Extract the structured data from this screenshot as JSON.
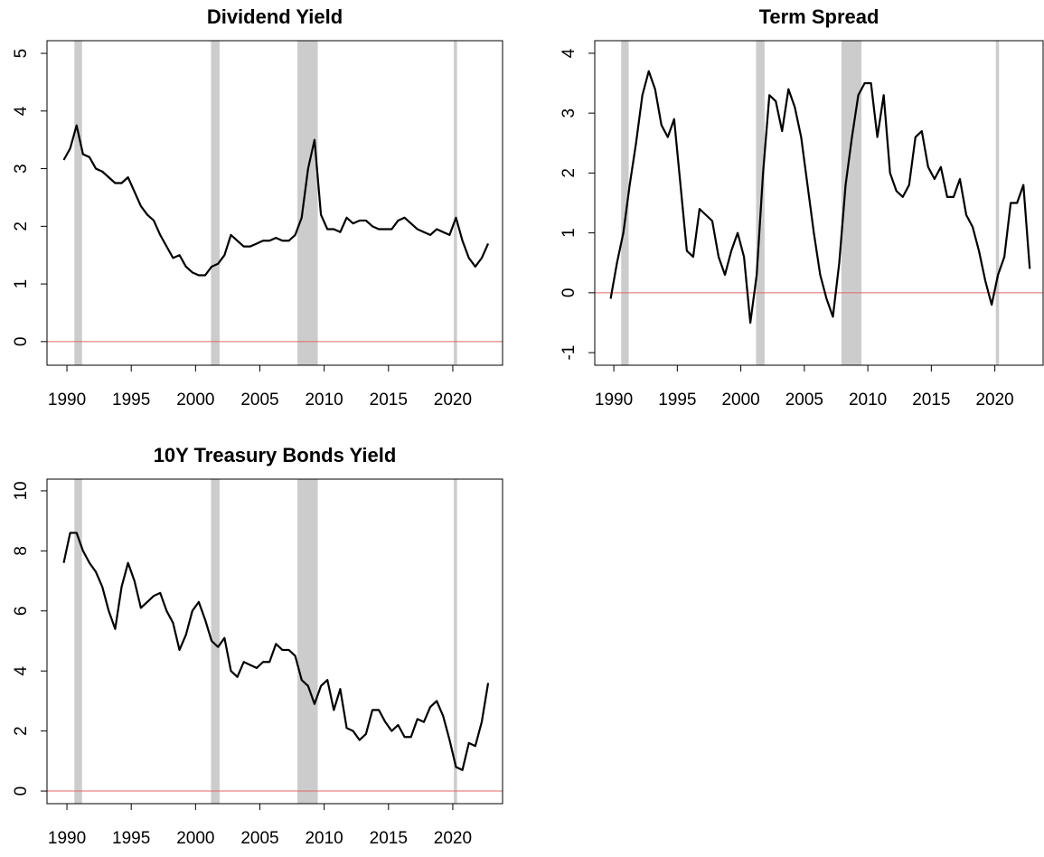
{
  "chart_data": [
    {
      "type": "line",
      "title": "Dividend Yield",
      "color": "#000000",
      "x": [
        1989.75,
        1990.25,
        1990.75,
        1991.25,
        1991.75,
        1992.25,
        1992.75,
        1993.25,
        1993.75,
        1994.25,
        1994.75,
        1995.25,
        1995.75,
        1996.25,
        1996.75,
        1997.25,
        1997.75,
        1998.25,
        1998.75,
        1999.25,
        1999.75,
        2000.25,
        2000.75,
        2001.25,
        2001.75,
        2002.25,
        2002.75,
        2003.25,
        2003.75,
        2004.25,
        2004.75,
        2005.25,
        2005.75,
        2006.25,
        2006.75,
        2007.25,
        2007.75,
        2008.25,
        2008.75,
        2009.25,
        2009.75,
        2010.25,
        2010.75,
        2011.25,
        2011.75,
        2012.25,
        2012.75,
        2013.25,
        2013.75,
        2014.25,
        2014.75,
        2015.25,
        2015.75,
        2016.25,
        2016.75,
        2017.25,
        2017.75,
        2018.25,
        2018.75,
        2019.25,
        2019.75,
        2020.25,
        2020.75,
        2021.25,
        2021.75,
        2022.25,
        2022.75
      ],
      "values": [
        3.15,
        3.35,
        3.75,
        3.25,
        3.2,
        3.0,
        2.95,
        2.85,
        2.75,
        2.75,
        2.85,
        2.6,
        2.35,
        2.2,
        2.1,
        1.85,
        1.65,
        1.45,
        1.5,
        1.3,
        1.2,
        1.15,
        1.15,
        1.3,
        1.35,
        1.5,
        1.85,
        1.75,
        1.65,
        1.65,
        1.7,
        1.75,
        1.75,
        1.8,
        1.75,
        1.75,
        1.85,
        2.15,
        3.0,
        3.5,
        2.2,
        1.95,
        1.95,
        1.9,
        2.15,
        2.05,
        2.1,
        2.1,
        2.0,
        1.95,
        1.95,
        1.95,
        2.1,
        2.15,
        2.05,
        1.95,
        1.9,
        1.85,
        1.95,
        1.9,
        1.85,
        2.15,
        1.75,
        1.45,
        1.3,
        1.45,
        1.7
      ],
      "xlim": [
        1988.45,
        2023.87
      ],
      "ylim": [
        -0.41,
        5.22
      ],
      "xticks": [
        1990,
        1995,
        2000,
        2005,
        2010,
        2015,
        2020
      ],
      "yticks": [
        0,
        1,
        2,
        3,
        4,
        5
      ],
      "bands": [
        [
          1990.58,
          1991.17
        ],
        [
          2001.2,
          2001.87
        ],
        [
          2007.92,
          2009.5
        ],
        [
          2020.08,
          2020.33
        ]
      ],
      "band_color": "#cccccc",
      "hline": 0,
      "hline_color": "#e06666"
    },
    {
      "type": "line",
      "title": "Term Spread",
      "color": "#000000",
      "x": [
        1989.75,
        1990.25,
        1990.75,
        1991.25,
        1991.75,
        1992.25,
        1992.75,
        1993.25,
        1993.75,
        1994.25,
        1994.75,
        1995.25,
        1995.75,
        1996.25,
        1996.75,
        1997.25,
        1997.75,
        1998.25,
        1998.75,
        1999.25,
        1999.75,
        2000.25,
        2000.75,
        2001.25,
        2001.75,
        2002.25,
        2002.75,
        2003.25,
        2003.75,
        2004.25,
        2004.75,
        2005.25,
        2005.75,
        2006.25,
        2006.75,
        2007.25,
        2007.75,
        2008.25,
        2008.75,
        2009.25,
        2009.75,
        2010.25,
        2010.75,
        2011.25,
        2011.75,
        2012.25,
        2012.75,
        2013.25,
        2013.75,
        2014.25,
        2014.75,
        2015.25,
        2015.75,
        2016.25,
        2016.75,
        2017.25,
        2017.75,
        2018.25,
        2018.75,
        2019.25,
        2019.75,
        2020.25,
        2020.75,
        2021.25,
        2021.75,
        2022.25,
        2022.75
      ],
      "values": [
        -0.1,
        0.5,
        1.0,
        1.8,
        2.5,
        3.3,
        3.7,
        3.4,
        2.8,
        2.6,
        2.9,
        1.8,
        0.7,
        0.6,
        1.4,
        1.3,
        1.2,
        0.6,
        0.3,
        0.7,
        1.0,
        0.6,
        -0.5,
        0.3,
        2.0,
        3.3,
        3.2,
        2.7,
        3.4,
        3.1,
        2.6,
        1.8,
        1.0,
        0.3,
        -0.1,
        -0.4,
        0.5,
        1.8,
        2.6,
        3.3,
        3.5,
        3.5,
        2.6,
        3.3,
        2.0,
        1.7,
        1.6,
        1.8,
        2.6,
        2.7,
        2.1,
        1.9,
        2.1,
        1.6,
        1.6,
        1.9,
        1.3,
        1.1,
        0.7,
        0.2,
        -0.2,
        0.3,
        0.6,
        1.5,
        1.5,
        1.8,
        0.4
      ],
      "xlim": [
        1988.5,
        2023.8
      ],
      "ylim": [
        -1.21,
        4.21
      ],
      "xticks": [
        1990,
        1995,
        2000,
        2005,
        2010,
        2015,
        2020
      ],
      "yticks": [
        -1,
        0,
        1,
        2,
        3,
        4
      ],
      "bands": [
        [
          1990.58,
          1991.17
        ],
        [
          2001.2,
          2001.87
        ],
        [
          2007.92,
          2009.5
        ],
        [
          2020.08,
          2020.33
        ]
      ],
      "band_color": "#cccccc",
      "hline": 0,
      "hline_color": "#e06666"
    },
    {
      "type": "line",
      "title": "10Y Treasury Bonds Yield",
      "color": "#000000",
      "x": [
        1989.75,
        1990.25,
        1990.75,
        1991.25,
        1991.75,
        1992.25,
        1992.75,
        1993.25,
        1993.75,
        1994.25,
        1994.75,
        1995.25,
        1995.75,
        1996.25,
        1996.75,
        1997.25,
        1997.75,
        1998.25,
        1998.75,
        1999.25,
        1999.75,
        2000.25,
        2000.75,
        2001.25,
        2001.75,
        2002.25,
        2002.75,
        2003.25,
        2003.75,
        2004.25,
        2004.75,
        2005.25,
        2005.75,
        2006.25,
        2006.75,
        2007.25,
        2007.75,
        2008.25,
        2008.75,
        2009.25,
        2009.75,
        2010.25,
        2010.75,
        2011.25,
        2011.75,
        2012.25,
        2012.75,
        2013.25,
        2013.75,
        2014.25,
        2014.75,
        2015.25,
        2015.75,
        2016.25,
        2016.75,
        2017.25,
        2017.75,
        2018.25,
        2018.75,
        2019.25,
        2019.75,
        2020.25,
        2020.75,
        2021.25,
        2021.75,
        2022.25,
        2022.75
      ],
      "values": [
        7.6,
        8.6,
        8.6,
        8.0,
        7.6,
        7.3,
        6.8,
        6.0,
        5.4,
        6.8,
        7.6,
        7.0,
        6.1,
        6.3,
        6.5,
        6.6,
        6.0,
        5.6,
        4.7,
        5.2,
        6.0,
        6.3,
        5.7,
        5.0,
        4.8,
        5.1,
        4.0,
        3.8,
        4.3,
        4.2,
        4.1,
        4.3,
        4.3,
        4.9,
        4.7,
        4.7,
        4.5,
        3.7,
        3.5,
        2.9,
        3.5,
        3.7,
        2.7,
        3.4,
        2.1,
        2.0,
        1.7,
        1.9,
        2.7,
        2.7,
        2.3,
        2.0,
        2.2,
        1.8,
        1.8,
        2.4,
        2.3,
        2.8,
        3.0,
        2.5,
        1.7,
        0.8,
        0.7,
        1.6,
        1.5,
        2.3,
        3.6
      ],
      "xlim": [
        1988.45,
        2023.87
      ],
      "ylim": [
        -0.42,
        10.39
      ],
      "xticks": [
        1990,
        1995,
        2000,
        2005,
        2010,
        2015,
        2020
      ],
      "yticks": [
        0,
        2,
        4,
        6,
        8,
        10
      ],
      "bands": [
        [
          1990.58,
          1991.17
        ],
        [
          2001.2,
          2001.87
        ],
        [
          2007.92,
          2009.5
        ],
        [
          2020.08,
          2020.33
        ]
      ],
      "band_color": "#cccccc",
      "hline": 0,
      "hline_color": "#e06666"
    }
  ]
}
